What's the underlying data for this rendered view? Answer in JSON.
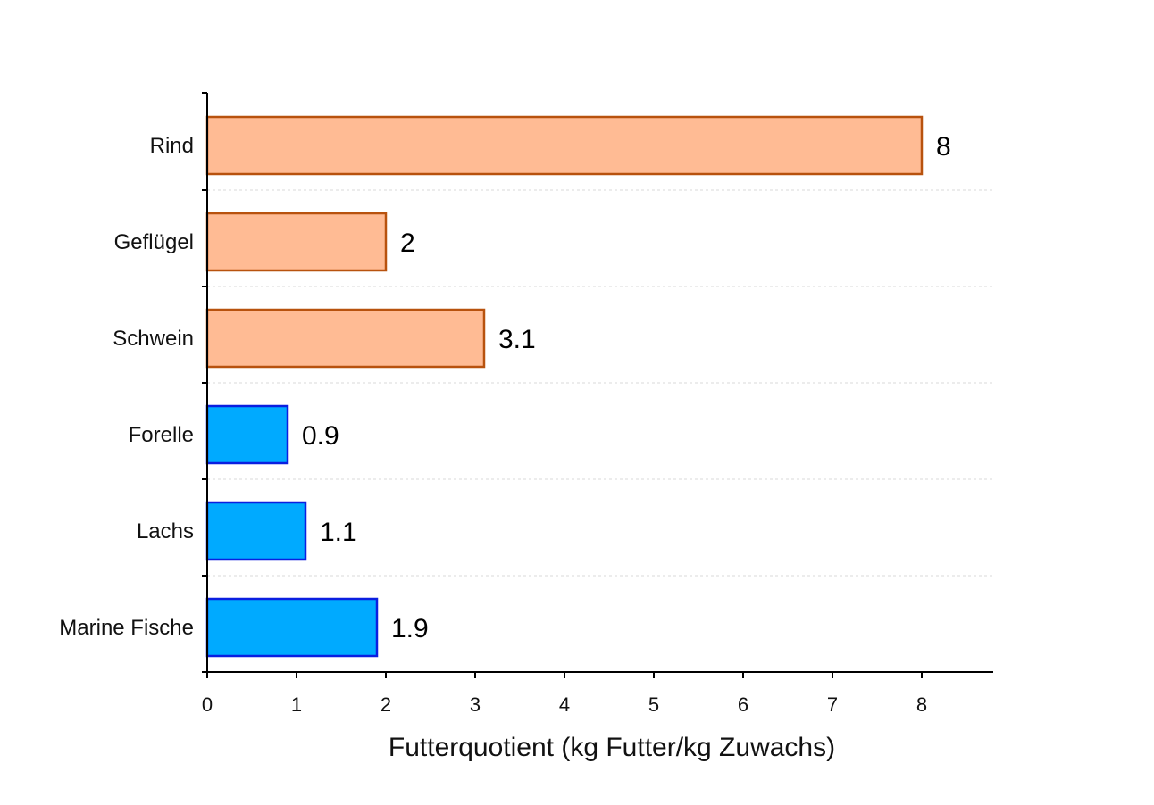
{
  "chart_data": {
    "type": "bar",
    "orientation": "horizontal",
    "categories": [
      "Rind",
      "Geflügel",
      "Schwein",
      "Forelle",
      "Lachs",
      "Marine Fische"
    ],
    "values": [
      8,
      2,
      3.1,
      0.9,
      1.1,
      1.9
    ],
    "value_labels": [
      "8",
      "2",
      "3.1",
      "0.9",
      "1.1",
      "1.9"
    ],
    "groups": [
      "land",
      "land",
      "land",
      "fish",
      "fish",
      "fish"
    ],
    "colors": {
      "land_fill": "#FFBB94",
      "land_stroke": "#B8520E",
      "fish_fill": "#00AAFF",
      "fish_stroke": "#0A1FE0"
    },
    "title": "",
    "xlabel": "Futterquotient (kg Futter/kg Zuwachs)",
    "ylabel": "",
    "xlim": [
      0,
      8.8
    ],
    "xticks": [
      0,
      1,
      2,
      3,
      4,
      5,
      6,
      7,
      8
    ],
    "grid": "horizontal dotted between categories",
    "legend": "none"
  }
}
